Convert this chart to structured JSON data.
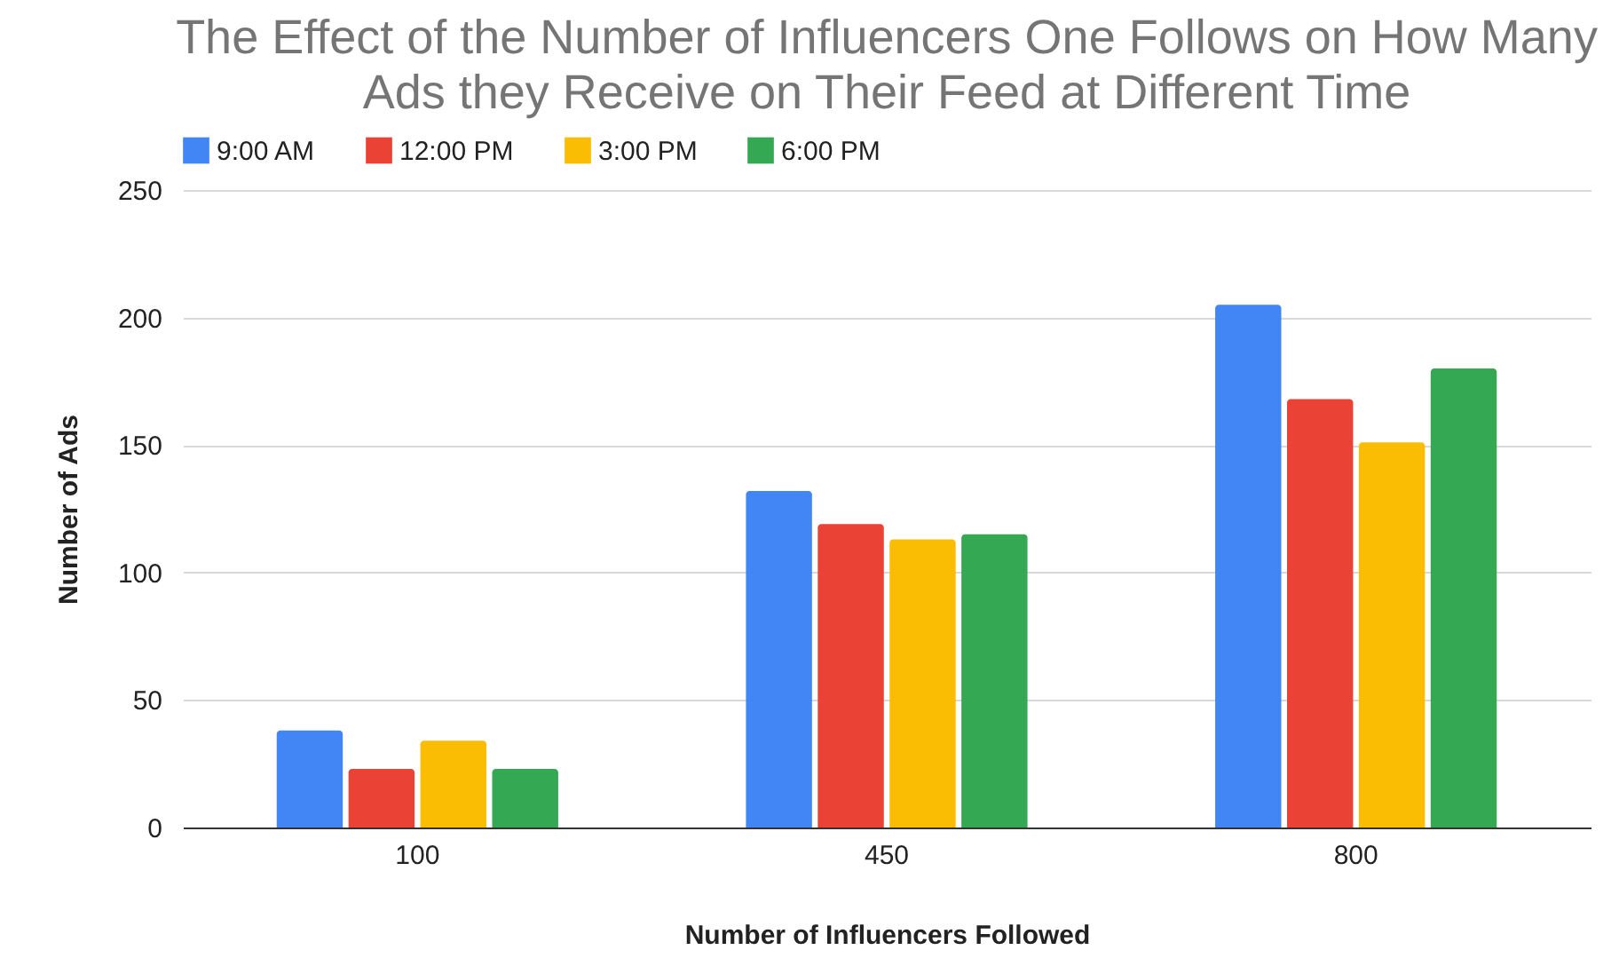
{
  "chart_data": {
    "type": "bar",
    "title": "The Effect of the Number of Influencers One Follows on How Many Ads they Receive on Their Feed at Different Time",
    "xlabel": "Number of Influencers Followed",
    "ylabel": "Number of Ads",
    "categories": [
      "100",
      "450",
      "800"
    ],
    "series": [
      {
        "name": "9:00 AM",
        "color": "#4285f4",
        "values": [
          38,
          132,
          205
        ]
      },
      {
        "name": "12:00 PM",
        "color": "#ea4335",
        "values": [
          23,
          119,
          168
        ]
      },
      {
        "name": "3:00 PM",
        "color": "#fbbc04",
        "values": [
          34,
          113,
          151
        ]
      },
      {
        "name": "6:00 PM",
        "color": "#34a853",
        "values": [
          23,
          115,
          180
        ]
      }
    ],
    "ylim": [
      0,
      250
    ],
    "yticks": [
      0,
      50,
      100,
      150,
      200,
      250
    ],
    "grid": "y",
    "legend": "top"
  }
}
